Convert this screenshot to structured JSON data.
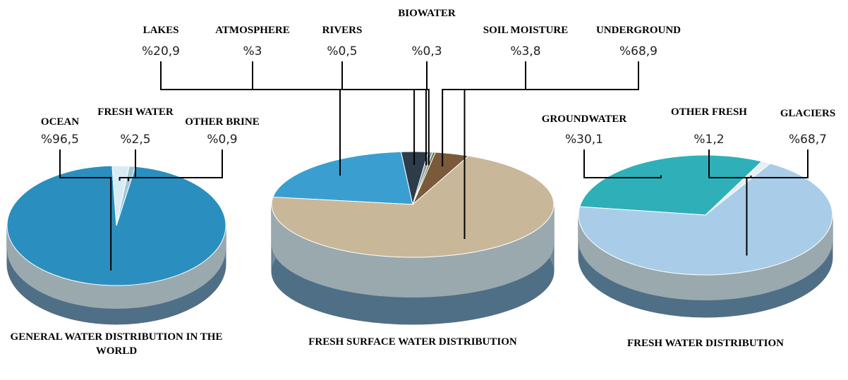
{
  "chart_data": [
    {
      "type": "pie",
      "title": "GENERAL WATER DISTRIBUTION IN THE WORLD",
      "categories": [
        "OCEAN",
        "FRESH WATER",
        "OTHER BRINE"
      ],
      "values": [
        96.5,
        2.5,
        0.9
      ],
      "value_labels": [
        "%96,5",
        "%2,5",
        "%0,9"
      ],
      "colors": [
        "#2a8fbf",
        "#d8ecf4",
        "#9fc7d6"
      ]
    },
    {
      "type": "pie",
      "title": "FRESH SURFACE WATER DISTRIBUTION",
      "categories": [
        "LAKES",
        "ATMOSPHERE",
        "RIVERS",
        "BIOWATER",
        "SOIL MOISTURE",
        "UNDERGROUND"
      ],
      "values": [
        20.9,
        3,
        0.5,
        0.3,
        3.8,
        68.9
      ],
      "value_labels": [
        "%20,9",
        "%3",
        "%0,5",
        "%0,3",
        "%3,8",
        "%68,9"
      ],
      "colors": [
        "#3a9fd0",
        "#2d3c4a",
        "#8aa0a8",
        "#6b7d4a",
        "#7a5a3a",
        "#c9b79a"
      ]
    },
    {
      "type": "pie",
      "title": "FRESH WATER DISTRIBUTION",
      "categories": [
        "GROUNDWATER",
        "OTHER FRESH",
        "GLACIERS"
      ],
      "values": [
        30.1,
        1.2,
        68.7
      ],
      "value_labels": [
        "%30,1",
        "%1,2",
        "%68,7"
      ],
      "colors": [
        "#2fb0b8",
        "#e8eef2",
        "#a9cde8"
      ]
    }
  ]
}
